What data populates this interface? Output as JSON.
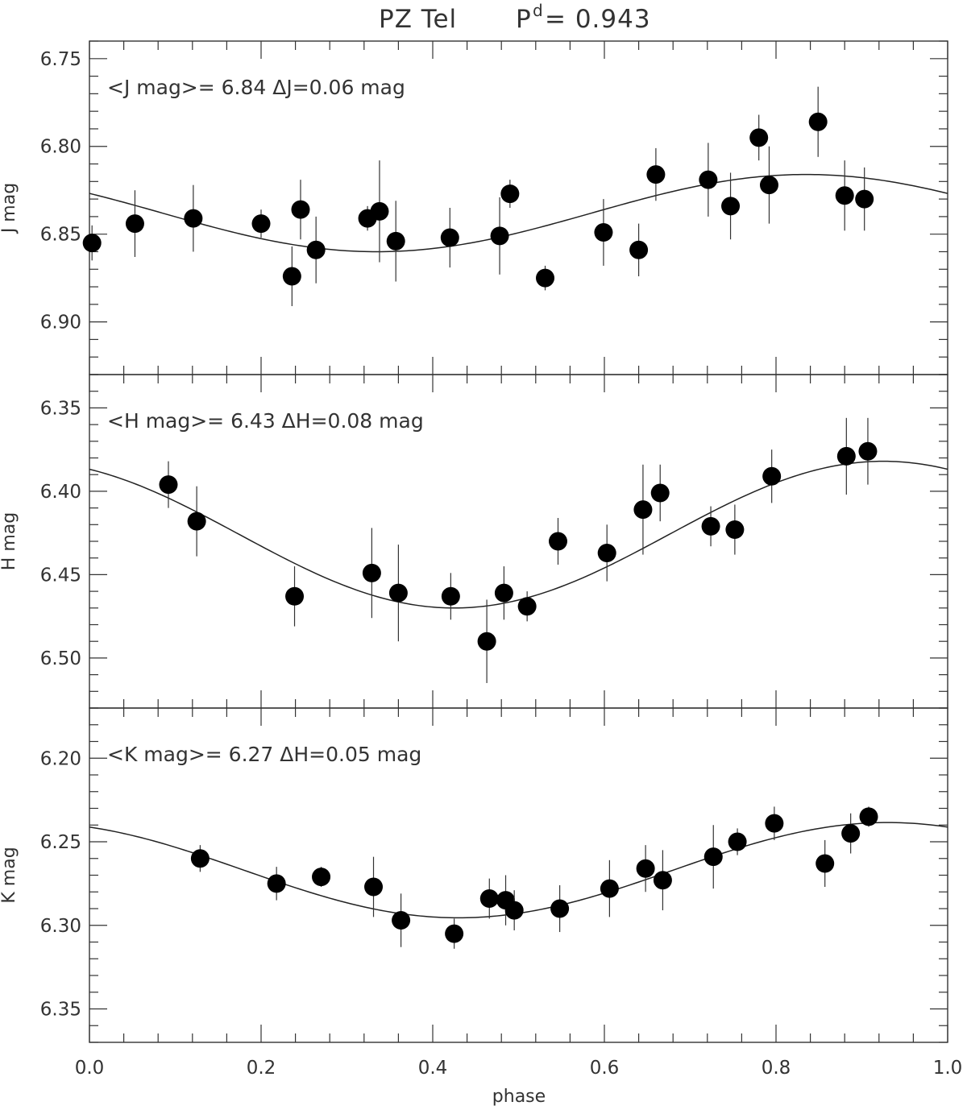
{
  "title_main": "PZ Tel",
  "title_period_symbol": "P",
  "title_period_superscript": "d",
  "title_period_value": "= 0.943",
  "x_axis": {
    "label": "phase",
    "range": [
      0.0,
      1.0
    ],
    "ticks": [
      "0.0",
      "0.2",
      "0.4",
      "0.6",
      "0.8",
      "1.0"
    ]
  },
  "chart_data": [
    {
      "type": "scatter",
      "ylabel": "J mag",
      "annotation": "<J mag>= 6.84   ΔJ=0.06 mag",
      "ylim": [
        6.93,
        6.74
      ],
      "y_inverted": true,
      "yticks": [
        "6.75",
        "6.80",
        "6.85",
        "6.90"
      ],
      "model_curve": {
        "mean": 6.838,
        "amplitude": 0.022,
        "max_phase": 0.835
      },
      "points": [
        {
          "x": 0.003,
          "y": 6.855,
          "err": 0.01
        },
        {
          "x": 0.053,
          "y": 6.844,
          "err": 0.019
        },
        {
          "x": 0.121,
          "y": 6.841,
          "err": 0.019
        },
        {
          "x": 0.2,
          "y": 6.844,
          "err": 0.008
        },
        {
          "x": 0.236,
          "y": 6.874,
          "err": 0.017
        },
        {
          "x": 0.246,
          "y": 6.836,
          "err": 0.017
        },
        {
          "x": 0.264,
          "y": 6.859,
          "err": 0.019
        },
        {
          "x": 0.324,
          "y": 6.841,
          "err": 0.007
        },
        {
          "x": 0.338,
          "y": 6.837,
          "err": 0.029
        },
        {
          "x": 0.357,
          "y": 6.854,
          "err": 0.023
        },
        {
          "x": 0.42,
          "y": 6.852,
          "err": 0.017
        },
        {
          "x": 0.478,
          "y": 6.851,
          "err": 0.022
        },
        {
          "x": 0.49,
          "y": 6.827,
          "err": 0.008
        },
        {
          "x": 0.531,
          "y": 6.875,
          "err": 0.007
        },
        {
          "x": 0.599,
          "y": 6.849,
          "err": 0.019
        },
        {
          "x": 0.64,
          "y": 6.859,
          "err": 0.015
        },
        {
          "x": 0.66,
          "y": 6.816,
          "err": 0.015
        },
        {
          "x": 0.721,
          "y": 6.819,
          "err": 0.021
        },
        {
          "x": 0.747,
          "y": 6.834,
          "err": 0.019
        },
        {
          "x": 0.78,
          "y": 6.795,
          "err": 0.013
        },
        {
          "x": 0.792,
          "y": 6.822,
          "err": 0.022
        },
        {
          "x": 0.849,
          "y": 6.786,
          "err": 0.02
        },
        {
          "x": 0.88,
          "y": 6.828,
          "err": 0.02
        },
        {
          "x": 0.903,
          "y": 6.83,
          "err": 0.018
        }
      ]
    },
    {
      "type": "scatter",
      "ylabel": "H mag",
      "annotation": "<H mag>= 6.43   ΔH=0.08 mag",
      "ylim": [
        6.53,
        6.33
      ],
      "y_inverted": true,
      "yticks": [
        "6.35",
        "6.40",
        "6.45",
        "6.50"
      ],
      "model_curve": {
        "mean": 6.426,
        "amplitude": 0.044,
        "max_phase": 0.925
      },
      "points": [
        {
          "x": 0.092,
          "y": 6.396,
          "err": 0.014
        },
        {
          "x": 0.125,
          "y": 6.418,
          "err": 0.021
        },
        {
          "x": 0.239,
          "y": 6.463,
          "err": 0.018
        },
        {
          "x": 0.329,
          "y": 6.449,
          "err": 0.027
        },
        {
          "x": 0.36,
          "y": 6.461,
          "err": 0.029
        },
        {
          "x": 0.421,
          "y": 6.463,
          "err": 0.014
        },
        {
          "x": 0.463,
          "y": 6.49,
          "err": 0.025
        },
        {
          "x": 0.483,
          "y": 6.461,
          "err": 0.016
        },
        {
          "x": 0.51,
          "y": 6.469,
          "err": 0.009
        },
        {
          "x": 0.546,
          "y": 6.43,
          "err": 0.014
        },
        {
          "x": 0.603,
          "y": 6.437,
          "err": 0.017
        },
        {
          "x": 0.645,
          "y": 6.411,
          "err": 0.027
        },
        {
          "x": 0.665,
          "y": 6.401,
          "err": 0.017
        },
        {
          "x": 0.724,
          "y": 6.421,
          "err": 0.012
        },
        {
          "x": 0.752,
          "y": 6.423,
          "err": 0.015
        },
        {
          "x": 0.795,
          "y": 6.391,
          "err": 0.016
        },
        {
          "x": 0.882,
          "y": 6.379,
          "err": 0.023
        },
        {
          "x": 0.907,
          "y": 6.376,
          "err": 0.02
        }
      ]
    },
    {
      "type": "scatter",
      "ylabel": "K mag",
      "annotation": "<K mag>= 6.27   ΔH=0.05 mag",
      "ylim": [
        6.37,
        6.17
      ],
      "y_inverted": true,
      "yticks": [
        "6.20",
        "6.25",
        "6.30",
        "6.35"
      ],
      "model_curve": {
        "mean": 6.267,
        "amplitude": 0.0285,
        "max_phase": 0.93
      },
      "points": [
        {
          "x": 0.129,
          "y": 6.26,
          "err": 0.008
        },
        {
          "x": 0.218,
          "y": 6.275,
          "err": 0.01
        },
        {
          "x": 0.27,
          "y": 6.271,
          "err": 0.006
        },
        {
          "x": 0.331,
          "y": 6.277,
          "err": 0.018
        },
        {
          "x": 0.363,
          "y": 6.297,
          "err": 0.016
        },
        {
          "x": 0.425,
          "y": 6.305,
          "err": 0.009
        },
        {
          "x": 0.466,
          "y": 6.284,
          "err": 0.012
        },
        {
          "x": 0.485,
          "y": 6.285,
          "err": 0.015
        },
        {
          "x": 0.495,
          "y": 6.291,
          "err": 0.012
        },
        {
          "x": 0.548,
          "y": 6.29,
          "err": 0.014
        },
        {
          "x": 0.606,
          "y": 6.278,
          "err": 0.017
        },
        {
          "x": 0.648,
          "y": 6.266,
          "err": 0.014
        },
        {
          "x": 0.668,
          "y": 6.273,
          "err": 0.018
        },
        {
          "x": 0.727,
          "y": 6.259,
          "err": 0.019
        },
        {
          "x": 0.755,
          "y": 6.25,
          "err": 0.008
        },
        {
          "x": 0.798,
          "y": 6.239,
          "err": 0.01
        },
        {
          "x": 0.857,
          "y": 6.263,
          "err": 0.014
        },
        {
          "x": 0.887,
          "y": 6.245,
          "err": 0.012
        },
        {
          "x": 0.908,
          "y": 6.235,
          "err": 0.006
        }
      ]
    }
  ]
}
